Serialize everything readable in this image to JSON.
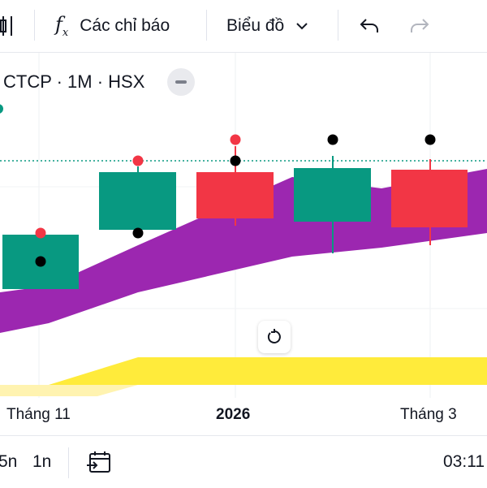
{
  "toolbar": {
    "indicators_label": "Các chỉ báo",
    "chart_type_label": "Biểu đồ"
  },
  "legend": {
    "symbol_text": "CTCP · 1M · HSX"
  },
  "x_axis": {
    "labels": [
      "Tháng 11",
      "2026",
      "Tháng 3"
    ]
  },
  "bottombar": {
    "range_5": "5n",
    "range_1": "1n",
    "time": "03:11"
  },
  "colors": {
    "up": "#089981",
    "down": "#f23645",
    "cloud": "#9c27b0",
    "lower_band": "#ffeb3b",
    "dots_red": "#f23645",
    "dots_black": "#000000",
    "price_line": "#089981"
  },
  "icons": {
    "chart_toolbar_left": "candle-icon",
    "indicators": "fx-icon",
    "chart_type": "chevron-down-icon",
    "undo": "undo-icon",
    "redo": "redo-icon",
    "collapse": "minus-icon",
    "reset": "reset-icon",
    "date_range": "calendar-goto-icon"
  }
}
